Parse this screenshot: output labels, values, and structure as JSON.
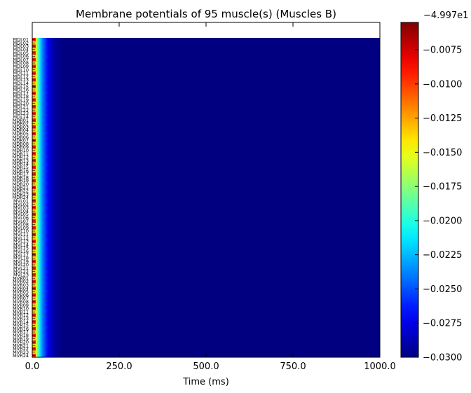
{
  "chart_data": {
    "type": "heatmap",
    "title": "Membrane potentials of 95 muscle(s) (Muscles B)",
    "xlabel": "Time (ms)",
    "xlim": [
      0.0,
      1000.0
    ],
    "x_ticks": [
      "0.0",
      "250.0",
      "500.0",
      "750.0",
      "1000.0"
    ],
    "n_rows": 95,
    "row_labels": [
      "MDL01",
      "MDL02",
      "MDL03",
      "MDL04",
      "MDL05",
      "MDL06",
      "MDL07",
      "MDL08",
      "MDL09",
      "MDL10",
      "MDL11",
      "MDL12",
      "MDL13",
      "MDL14",
      "MDL15",
      "MDL16",
      "MDL17",
      "MDL18",
      "MDL19",
      "MDL20",
      "MDL21",
      "MDL22",
      "MDL23",
      "MDL24",
      "MDR01",
      "MDR02",
      "MDR03",
      "MDR04",
      "MDR05",
      "MDR06",
      "MDR07",
      "MDR08",
      "MDR09",
      "MDR10",
      "MDR11",
      "MDR12",
      "MDR13",
      "MDR14",
      "MDR15",
      "MDR16",
      "MDR17",
      "MDR18",
      "MDR19",
      "MDR20",
      "MDR21",
      "MDR22",
      "MDR23",
      "MDR24",
      "MVL01",
      "MVL02",
      "MVL03",
      "MVL04",
      "MVL05",
      "MVL06",
      "MVL07",
      "MVL08",
      "MVL09",
      "MVL10",
      "MVL11",
      "MVL12",
      "MVL13",
      "MVL14",
      "MVL15",
      "MVL16",
      "MVL17",
      "MVL18",
      "MVL19",
      "MVL20",
      "MVL21",
      "MVL22",
      "MVL23",
      "MVR01",
      "MVR02",
      "MVR03",
      "MVR04",
      "MVR05",
      "MVR06",
      "MVR07",
      "MVR08",
      "MVR09",
      "MVR10",
      "MVR11",
      "MVR12",
      "MVR13",
      "MVR14",
      "MVR15",
      "MVR16",
      "MVR17",
      "MVR18",
      "MVR19",
      "MVR20",
      "MVR21",
      "MVR22",
      "MVR23",
      "MVR24"
    ],
    "value_profile_over_time": {
      "time_ms": [
        0,
        5,
        10,
        20,
        30,
        45,
        60,
        80,
        100,
        1000
      ],
      "value_offset": [
        -0.0055,
        -0.0085,
        -0.0145,
        -0.0205,
        -0.024,
        -0.0272,
        -0.029,
        -0.0298,
        -0.03,
        -0.03
      ]
    },
    "stripes_near_t0": {
      "odd_rows": "#ff1500",
      "even_rows": "#ffcc00"
    },
    "colorbar": {
      "offset_label": "−4.997e1",
      "vmin": -0.03,
      "vmax": -0.0055,
      "ticks": [
        "−0.0075",
        "−0.0100",
        "−0.0125",
        "−0.0150",
        "−0.0175",
        "−0.0200",
        "−0.0225",
        "−0.0250",
        "−0.0275",
        "−0.0300"
      ],
      "tick_values": [
        -0.0075,
        -0.01,
        -0.0125,
        -0.015,
        -0.0175,
        -0.02,
        -0.0225,
        -0.025,
        -0.0275,
        -0.03
      ],
      "colormap": "jet"
    },
    "grid": false
  }
}
